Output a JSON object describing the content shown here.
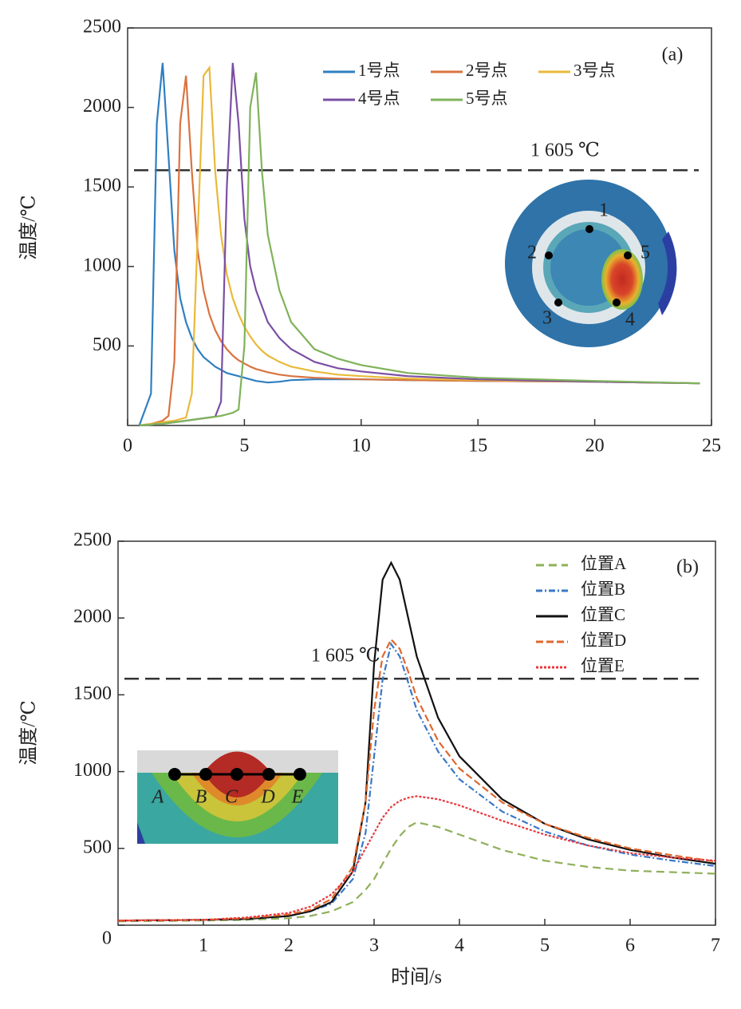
{
  "chart_data": [
    {
      "type": "line",
      "panel_label": "(a)",
      "ylabel": "温度/℃",
      "refline": {
        "value": 1605,
        "label": "1 605 ℃"
      },
      "inset_labels": [
        "1",
        "2",
        "3",
        "4",
        "5"
      ],
      "xlim": [
        0,
        25
      ],
      "xticks": [
        0,
        5,
        10,
        15,
        20,
        25
      ],
      "ylim": [
        0,
        2500
      ],
      "yticks": [
        500,
        1000,
        1500,
        2000,
        2500
      ],
      "x": [
        0.5,
        1,
        1.25,
        1.5,
        1.75,
        2,
        2.25,
        2.5,
        2.75,
        3,
        3.25,
        3.5,
        3.75,
        4,
        4.25,
        4.5,
        4.75,
        5,
        5.25,
        5.5,
        5.75,
        6,
        6.5,
        7,
        8,
        9,
        10,
        12,
        15,
        20,
        24.5
      ],
      "series": [
        {
          "name": "1号点",
          "color": "#2f7fc1",
          "values": [
            0,
            200,
            1900,
            2280,
            1700,
            1100,
            800,
            650,
            550,
            480,
            430,
            400,
            370,
            350,
            330,
            320,
            310,
            300,
            290,
            280,
            275,
            270,
            275,
            285,
            290,
            290,
            290,
            285,
            280,
            275,
            265
          ]
        },
        {
          "name": "2号点",
          "color": "#d9733f",
          "values": [
            0,
            10,
            20,
            30,
            60,
            400,
            1900,
            2200,
            1600,
            1100,
            850,
            700,
            600,
            530,
            480,
            440,
            410,
            390,
            370,
            355,
            345,
            335,
            320,
            310,
            300,
            295,
            290,
            285,
            280,
            275,
            265
          ]
        },
        {
          "name": "3号点",
          "color": "#e8b93a",
          "values": [
            0,
            10,
            15,
            20,
            25,
            30,
            40,
            50,
            200,
            1200,
            2200,
            2250,
            1600,
            1200,
            950,
            800,
            700,
            620,
            560,
            510,
            470,
            440,
            400,
            370,
            340,
            320,
            310,
            295,
            285,
            275,
            265
          ]
        },
        {
          "name": "4号点",
          "color": "#7b4fa3",
          "values": [
            0,
            5,
            10,
            10,
            15,
            20,
            25,
            30,
            35,
            40,
            45,
            50,
            55,
            150,
            1500,
            2280,
            1900,
            1300,
            1000,
            850,
            750,
            650,
            550,
            480,
            400,
            360,
            340,
            310,
            290,
            275,
            265
          ]
        },
        {
          "name": "5号点",
          "color": "#7fb35a",
          "values": [
            0,
            5,
            10,
            10,
            15,
            20,
            25,
            30,
            35,
            40,
            45,
            50,
            55,
            60,
            70,
            80,
            100,
            500,
            2000,
            2220,
            1600,
            1200,
            850,
            650,
            480,
            420,
            380,
            330,
            300,
            280,
            265
          ]
        }
      ]
    },
    {
      "type": "line",
      "panel_label": "(b)",
      "ylabel": "温度/℃",
      "xlabel": "时间/s",
      "refline": {
        "value": 1605,
        "label": "1 605 ℃"
      },
      "inset_labels": [
        "A",
        "B",
        "C",
        "D",
        "E"
      ],
      "xlim": [
        0,
        7
      ],
      "xticks": [
        1,
        2,
        3,
        4,
        5,
        6,
        7
      ],
      "ylim": [
        0,
        2500
      ],
      "yticks": [
        0,
        500,
        1000,
        1500,
        2000,
        2500
      ],
      "x": [
        0,
        1,
        1.5,
        2,
        2.25,
        2.5,
        2.75,
        2.9,
        3,
        3.1,
        3.2,
        3.3,
        3.4,
        3.5,
        3.75,
        4,
        4.5,
        5,
        5.5,
        6,
        6.5,
        7
      ],
      "series": [
        {
          "name": "位置A",
          "color": "#8fb05a",
          "dash": "10,6",
          "values": [
            25,
            30,
            35,
            45,
            60,
            90,
            150,
            230,
            300,
            400,
            500,
            580,
            640,
            670,
            640,
            590,
            490,
            420,
            380,
            355,
            345,
            335
          ]
        },
        {
          "name": "位置B",
          "color": "#3a78c8",
          "dash": "8,3,2,3",
          "values": [
            30,
            35,
            40,
            60,
            90,
            140,
            300,
            600,
            1100,
            1600,
            1830,
            1750,
            1580,
            1400,
            1130,
            950,
            740,
            610,
            520,
            460,
            420,
            385
          ]
        },
        {
          "name": "位置C",
          "color": "#111111",
          "dash": "",
          "values": [
            30,
            35,
            40,
            60,
            90,
            150,
            350,
            800,
            1700,
            2250,
            2360,
            2250,
            2000,
            1750,
            1350,
            1100,
            820,
            660,
            560,
            490,
            440,
            400
          ]
        },
        {
          "name": "位置D",
          "color": "#e0672e",
          "dash": "9,4",
          "values": [
            30,
            35,
            45,
            70,
            100,
            170,
            380,
            800,
            1400,
            1750,
            1860,
            1800,
            1650,
            1480,
            1200,
            1020,
            800,
            660,
            570,
            500,
            455,
            415
          ]
        },
        {
          "name": "位置E",
          "color": "#e8383d",
          "dash": "3,2",
          "values": [
            30,
            35,
            50,
            80,
            120,
            200,
            350,
            500,
            600,
            700,
            770,
            810,
            830,
            840,
            820,
            780,
            680,
            590,
            520,
            470,
            440,
            420
          ]
        }
      ]
    }
  ]
}
